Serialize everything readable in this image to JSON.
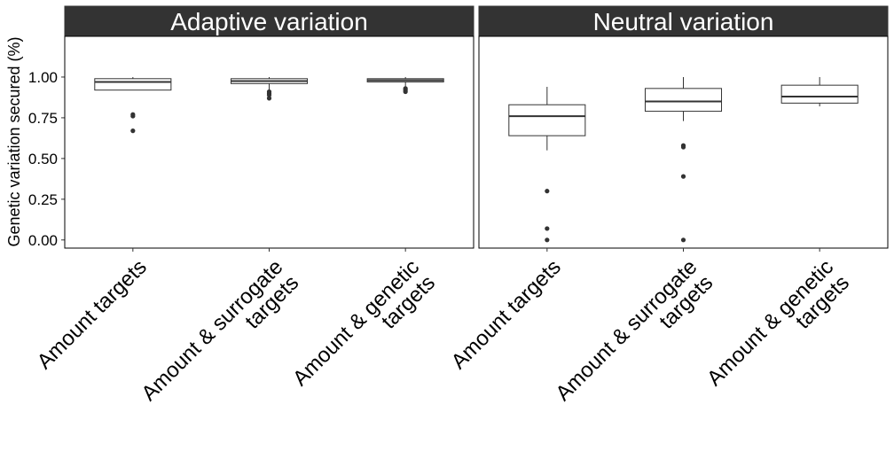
{
  "chart_data": {
    "type": "box",
    "ylabel": "Genetic variation secured (%)",
    "xlabel": "",
    "ylim": [
      -0.05,
      1.25
    ],
    "yticks": [
      0.0,
      0.25,
      0.5,
      0.75,
      1.0
    ],
    "ytick_labels": [
      "0.00",
      "0.25",
      "0.50",
      "0.75",
      "1.00"
    ],
    "grid": false,
    "legend": "none",
    "colors": {
      "strip_fill": "#333333",
      "strip_text": "#ffffff",
      "box_fill": "#ffffff",
      "box_stroke": "#333333",
      "outlier": "#333333",
      "panel_border": "#000000"
    },
    "categories": [
      [
        "Amount targets"
      ],
      [
        "Amount & surrogate",
        "targets"
      ],
      [
        "Amount & genetic",
        "targets"
      ]
    ],
    "panels": [
      {
        "title": "Adaptive variation",
        "boxes": [
          {
            "whisker_low": 0.92,
            "q1": 0.92,
            "median": 0.97,
            "q3": 0.99,
            "whisker_high": 1.0,
            "outliers": [
              0.77,
              0.76,
              0.67
            ]
          },
          {
            "whisker_low": 0.92,
            "q1": 0.96,
            "median": 0.975,
            "q3": 0.99,
            "whisker_high": 1.0,
            "outliers": [
              0.91,
              0.9,
              0.89,
              0.87
            ]
          },
          {
            "whisker_low": 0.94,
            "q1": 0.97,
            "median": 0.98,
            "q3": 0.99,
            "whisker_high": 1.0,
            "outliers": [
              0.93,
              0.92,
              0.91
            ]
          }
        ]
      },
      {
        "title": "Neutral variation",
        "boxes": [
          {
            "whisker_low": 0.55,
            "q1": 0.64,
            "median": 0.76,
            "q3": 0.83,
            "whisker_high": 0.94,
            "outliers": [
              0.3,
              0.07,
              0.0
            ]
          },
          {
            "whisker_low": 0.73,
            "q1": 0.79,
            "median": 0.85,
            "q3": 0.93,
            "whisker_high": 1.0,
            "outliers": [
              0.58,
              0.57,
              0.39,
              0.0
            ]
          },
          {
            "whisker_low": 0.82,
            "q1": 0.84,
            "median": 0.88,
            "q3": 0.95,
            "whisker_high": 1.0,
            "outliers": []
          }
        ]
      }
    ]
  }
}
